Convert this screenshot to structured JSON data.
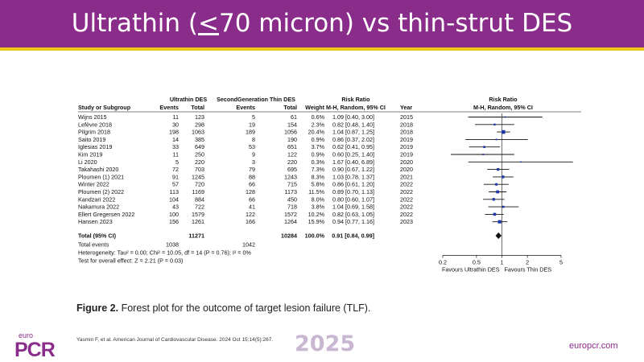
{
  "header": {
    "title_pre": "Ultrathin (",
    "title_sym": "<",
    "title_post": "70 micron) vs thin-strut DES",
    "accent_color": "#8a2c8a",
    "rule_color": "#f2c51a"
  },
  "chart_data": {
    "type": "forest",
    "left_headers": {
      "group1": "Ultrathin DES",
      "group2": "SecondGeneration Thin DES",
      "ratio": "Risk Ratio",
      "study": "Study or Subgroup",
      "events1": "Events",
      "total1": "Total",
      "events2": "Events",
      "total2": "Total",
      "weight": "Weight",
      "method": "M-H, Random, 95% CI",
      "year": "Year"
    },
    "right_headers": {
      "ratio": "Risk Ratio",
      "method": "M-H, Random, 95% CI"
    },
    "studies": [
      {
        "name": "Wijns 2015",
        "e1": "11",
        "t1": "123",
        "e2": "5",
        "t2": "61",
        "weight": "0.6%",
        "ci_text": "1.09 [0.40, 3.00]",
        "year": "2015",
        "rr": 1.09,
        "lo": 0.4,
        "hi": 3.0,
        "w": 0.6
      },
      {
        "name": "Lefèvre 2018",
        "e1": "30",
        "t1": "298",
        "e2": "19",
        "t2": "154",
        "weight": "2.3%",
        "ci_text": "0.82 [0.48, 1.40]",
        "year": "2018",
        "rr": 0.82,
        "lo": 0.48,
        "hi": 1.4,
        "w": 2.3
      },
      {
        "name": "Pilgrim 2018",
        "e1": "198",
        "t1": "1063",
        "e2": "189",
        "t2": "1056",
        "weight": "20.4%",
        "ci_text": "1.04 [0.87, 1.25]",
        "year": "2018",
        "rr": 1.04,
        "lo": 0.87,
        "hi": 1.25,
        "w": 20.4
      },
      {
        "name": "Saito 2019",
        "e1": "14",
        "t1": "385",
        "e2": "8",
        "t2": "190",
        "weight": "0.9%",
        "ci_text": "0.86 [0.37, 2.02]",
        "year": "2019",
        "rr": 0.86,
        "lo": 0.37,
        "hi": 2.02,
        "w": 0.9
      },
      {
        "name": "Iglesias 2019",
        "e1": "33",
        "t1": "649",
        "e2": "53",
        "t2": "651",
        "weight": "3.7%",
        "ci_text": "0.62 [0.41, 0.95]",
        "year": "2019",
        "rr": 0.62,
        "lo": 0.41,
        "hi": 0.95,
        "w": 3.7
      },
      {
        "name": "Kim 2019",
        "e1": "11",
        "t1": "250",
        "e2": "9",
        "t2": "122",
        "weight": "0.9%",
        "ci_text": "0.60 [0.25, 1.40]",
        "year": "2019",
        "rr": 0.6,
        "lo": 0.25,
        "hi": 1.4,
        "w": 0.9
      },
      {
        "name": "Li 2020",
        "e1": "5",
        "t1": "220",
        "e2": "3",
        "t2": "220",
        "weight": "0.3%",
        "ci_text": "1.67 [0.40, 6.89]",
        "year": "2020",
        "rr": 1.67,
        "lo": 0.4,
        "hi": 6.89,
        "w": 0.3
      },
      {
        "name": "Takahashi 2020",
        "e1": "72",
        "t1": "703",
        "e2": "79",
        "t2": "695",
        "weight": "7.3%",
        "ci_text": "0.90 [0.67, 1.22]",
        "year": "2020",
        "rr": 0.9,
        "lo": 0.67,
        "hi": 1.22,
        "w": 7.3
      },
      {
        "name": "Ploumen (1) 2021",
        "e1": "91",
        "t1": "1245",
        "e2": "88",
        "t2": "1243",
        "weight": "8.3%",
        "ci_text": "1.03 [0.78, 1.37]",
        "year": "2021",
        "rr": 1.03,
        "lo": 0.78,
        "hi": 1.37,
        "w": 8.3
      },
      {
        "name": "Winter 2022",
        "e1": "57",
        "t1": "720",
        "e2": "66",
        "t2": "715",
        "weight": "5.8%",
        "ci_text": "0.86 [0.61, 1.20]",
        "year": "2022",
        "rr": 0.86,
        "lo": 0.61,
        "hi": 1.2,
        "w": 5.8
      },
      {
        "name": "Ploumen (2) 2022",
        "e1": "113",
        "t1": "1169",
        "e2": "128",
        "t2": "1173",
        "weight": "11.5%",
        "ci_text": "0.89 [0.70, 1.13]",
        "year": "2022",
        "rr": 0.89,
        "lo": 0.7,
        "hi": 1.13,
        "w": 11.5
      },
      {
        "name": "Kandzari 2022",
        "e1": "104",
        "t1": "884",
        "e2": "66",
        "t2": "450",
        "weight": "8.0%",
        "ci_text": "0.80 [0.60, 1.07]",
        "year": "2022",
        "rr": 0.8,
        "lo": 0.6,
        "hi": 1.07,
        "w": 8.0
      },
      {
        "name": "Nakamura 2022",
        "e1": "43",
        "t1": "722",
        "e2": "41",
        "t2": "718",
        "weight": "3.8%",
        "ci_text": "1.04 [0.69, 1.58]",
        "year": "2022",
        "rr": 1.04,
        "lo": 0.69,
        "hi": 1.58,
        "w": 3.8
      },
      {
        "name": "Ellert Gregersen 2022",
        "e1": "100",
        "t1": "1579",
        "e2": "122",
        "t2": "1572",
        "weight": "10.2%",
        "ci_text": "0.82 [0.63, 1.05]",
        "year": "2022",
        "rr": 0.82,
        "lo": 0.63,
        "hi": 1.05,
        "w": 10.2
      },
      {
        "name": "Hansen 2023",
        "e1": "156",
        "t1": "1261",
        "e2": "166",
        "t2": "1264",
        "weight": "15.9%",
        "ci_text": "0.94 [0.77, 1.16]",
        "year": "2023",
        "rr": 0.94,
        "lo": 0.77,
        "hi": 1.16,
        "w": 15.9
      }
    ],
    "total": {
      "name": "Total (95% CI)",
      "t1": "11271",
      "t2": "10284",
      "weight": "100.0%",
      "ci_text": "0.91 [0.84, 0.99]",
      "rr": 0.91,
      "lo": 0.84,
      "hi": 0.99
    },
    "total_events": {
      "label": "Total events",
      "e1": "1038",
      "e2": "1042"
    },
    "heterogeneity": "Heterogeneity: Tau² = 0.00; Chi² = 10.05, df = 14 (P = 0.76); I² = 0%",
    "overall_effect": "Test for overall effect: Z = 2.21 (P = 0.03)",
    "x_scale": "log",
    "xlim": [
      0.2,
      5
    ],
    "x_ticks": [
      0.2,
      0.5,
      1,
      2,
      5
    ],
    "x_tick_labels": [
      "0.2",
      "0.5",
      "1",
      "2",
      "5"
    ],
    "favours_left": "Favours Ultrathin DES",
    "favours_right": "Favours Thin DES",
    "marker_color": "#1f3aa8"
  },
  "caption": {
    "fig": "Figure 2.",
    "text": " Forest plot for the outcome of target lesion failure (TLF)."
  },
  "citation": "Yasmin F, et al. American Journal of Cardiovascular Disease. 2024 Oct 15;14(5):267.",
  "footer": {
    "brand_top": "euro",
    "brand_main": "PCR",
    "year": "2025",
    "site": "europcr.com"
  }
}
